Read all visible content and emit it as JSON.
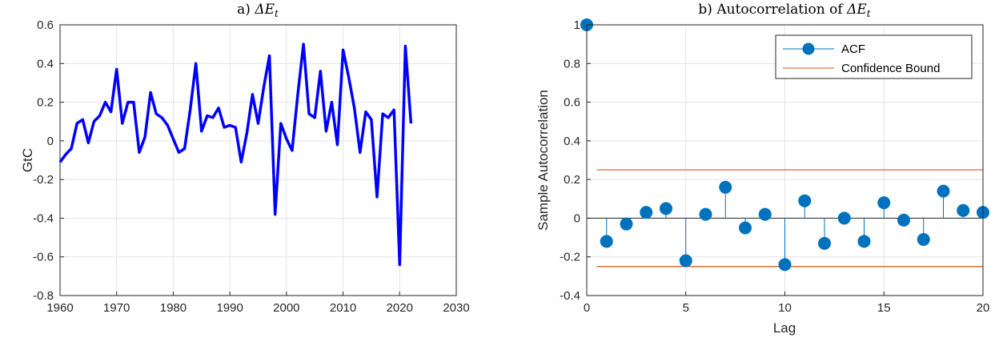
{
  "chart_data": [
    {
      "type": "line",
      "title_prefix": "a) ",
      "title_symbol": "ΔE",
      "title_sub": "t",
      "xlabel": "",
      "ylabel": "GtC",
      "xlim": [
        1960,
        2030
      ],
      "ylim": [
        -0.8,
        0.6
      ],
      "xticks": [
        "1960",
        "1970",
        "1980",
        "1990",
        "2000",
        "2010",
        "2020",
        "2030"
      ],
      "yticks": [
        "-0.8",
        "-0.6",
        "-0.4",
        "-0.2",
        "0",
        "0.2",
        "0.4",
        "0.6"
      ],
      "grid": true,
      "line_color": "#0000ff",
      "x": [
        1960,
        1961,
        1962,
        1963,
        1964,
        1965,
        1966,
        1967,
        1968,
        1969,
        1970,
        1971,
        1972,
        1973,
        1974,
        1975,
        1976,
        1977,
        1978,
        1979,
        1980,
        1981,
        1982,
        1983,
        1984,
        1985,
        1986,
        1987,
        1988,
        1989,
        1990,
        1991,
        1992,
        1993,
        1994,
        1995,
        1996,
        1997,
        1998,
        1999,
        2000,
        2001,
        2002,
        2003,
        2004,
        2005,
        2006,
        2007,
        2008,
        2009,
        2010,
        2011,
        2012,
        2013,
        2014,
        2015,
        2016,
        2017,
        2018,
        2019,
        2020,
        2021,
        2022
      ],
      "y": [
        -0.11,
        -0.07,
        -0.04,
        0.09,
        0.11,
        -0.01,
        0.1,
        0.13,
        0.2,
        0.15,
        0.37,
        0.09,
        0.2,
        0.2,
        -0.06,
        0.02,
        0.25,
        0.14,
        0.12,
        0.08,
        0.01,
        -0.06,
        -0.04,
        0.16,
        0.4,
        0.05,
        0.13,
        0.12,
        0.17,
        0.07,
        0.08,
        0.07,
        -0.11,
        0.04,
        0.24,
        0.09,
        0.28,
        0.44,
        -0.38,
        0.09,
        0.01,
        -0.05,
        0.24,
        0.5,
        0.14,
        0.12,
        0.36,
        0.05,
        0.2,
        -0.02,
        0.47,
        0.33,
        0.17,
        -0.06,
        0.15,
        0.11,
        -0.29,
        0.14,
        0.12,
        0.16,
        -0.64,
        0.49,
        0.09
      ]
    },
    {
      "type": "stem",
      "title_prefix": "b) Autocorrelation of ",
      "title_symbol": "ΔE",
      "title_sub": "t",
      "xlabel": "Lag",
      "ylabel": "Sample Autocorrelation",
      "xlim": [
        0,
        20
      ],
      "ylim": [
        -0.4,
        1.0
      ],
      "xticks": [
        "0",
        "5",
        "10",
        "15",
        "20"
      ],
      "yticks": [
        "-0.4",
        "-0.2",
        "0",
        "0.2",
        "0.4",
        "0.6",
        "0.8",
        "1"
      ],
      "grid": true,
      "legend_position": "top-right",
      "series": [
        {
          "name": "ACF",
          "color": "#0072bd",
          "x": [
            0,
            1,
            2,
            3,
            4,
            5,
            6,
            7,
            8,
            9,
            10,
            11,
            12,
            13,
            14,
            15,
            16,
            17,
            18,
            19,
            20
          ],
          "values": [
            1.0,
            -0.12,
            -0.03,
            0.03,
            0.05,
            -0.22,
            0.02,
            0.16,
            -0.05,
            0.02,
            -0.24,
            0.09,
            -0.13,
            0.0,
            -0.12,
            0.08,
            -0.01,
            -0.11,
            0.14,
            0.04,
            0.03
          ]
        },
        {
          "name": "Confidence Bound",
          "color": "#d95319",
          "bounds": [
            0.25,
            -0.25
          ],
          "x_range": [
            0.5,
            20
          ]
        }
      ]
    }
  ]
}
